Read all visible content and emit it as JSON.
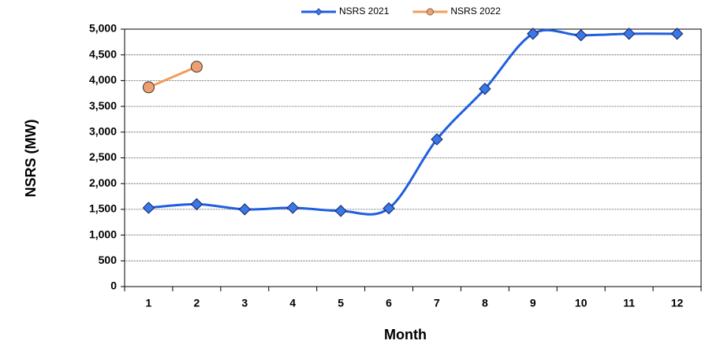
{
  "chart_data": {
    "type": "line",
    "xlabel": "Month",
    "ylabel": "NSRS (MW)",
    "categories": [
      "1",
      "2",
      "3",
      "4",
      "5",
      "6",
      "7",
      "8",
      "9",
      "10",
      "11",
      "12"
    ],
    "series": [
      {
        "name": "NSRS 2021",
        "color": "#1f5fe0",
        "marker_color": "#3b78e7",
        "marker": "diamond",
        "values": [
          1530,
          1600,
          1500,
          1530,
          1470,
          1520,
          2860,
          3840,
          4910,
          4880,
          4910,
          4910
        ]
      },
      {
        "name": "NSRS 2022",
        "color": "#f29d5b",
        "marker_color": "#f0a070",
        "marker": "circle",
        "values": [
          3870,
          4270,
          null,
          null,
          null,
          null,
          null,
          null,
          null,
          null,
          null,
          null
        ]
      }
    ],
    "ylim": [
      0,
      5000
    ],
    "yticks": [
      0,
      500,
      {
        "value": 1000,
        "label": "1,000"
      },
      {
        "value": 1500,
        "label": "1,500"
      },
      {
        "value": 2000,
        "label": "2,000"
      },
      {
        "value": 2500,
        "label": "2,500"
      },
      {
        "value": 3000,
        "label": "3,000"
      },
      {
        "value": 3500,
        "label": "3,500"
      },
      {
        "value": 4000,
        "label": "4,000"
      },
      {
        "value": 4500,
        "label": "4,500"
      },
      {
        "value": 5000,
        "label": "5,000"
      }
    ],
    "grid": true,
    "legend": "top"
  }
}
